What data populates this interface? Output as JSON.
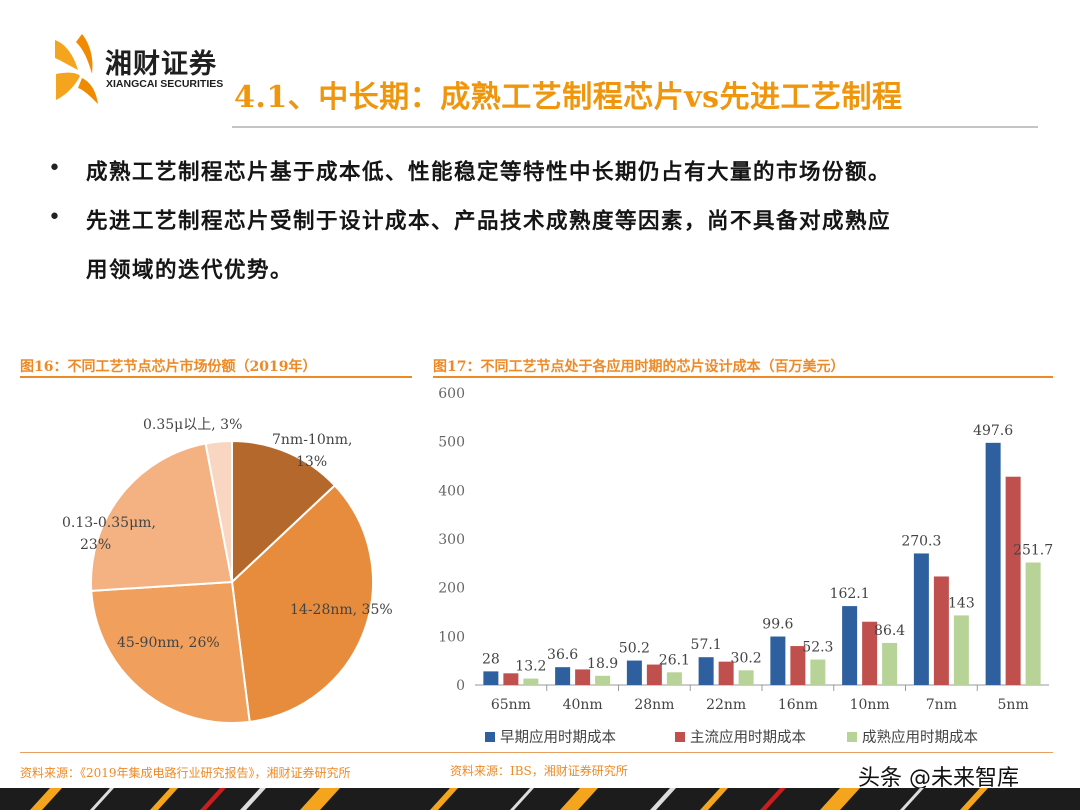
{
  "brand": {
    "name_cn": "湘财证券",
    "name_en": "XIANGCAI SECURITIES"
  },
  "title": "4.1、中长期：成熟工艺制程芯片vs先进工艺制程",
  "bullets": [
    {
      "lines": [
        "成熟工艺制程芯片基于成本低、性能稳定等特性中长期仍占有大量的市场份额。"
      ]
    },
    {
      "lines": [
        "先进工艺制程芯片受制于设计成本、产品技术成熟度等因素，尚不具备对成熟应",
        "用领域的迭代优势。"
      ]
    }
  ],
  "fig16": {
    "caption": "图16：不同工艺节点芯片市场份额（2019年）",
    "source": "资料来源：《2019年集成电路行业研究报告》，湘财证券研究所"
  },
  "fig17": {
    "caption": "图17：不同工艺节点处于各应用时期的芯片设计成本（百万美元）",
    "source": "资料来源：IBS，湘财证券研究所"
  },
  "chart_data": [
    {
      "type": "pie",
      "slices": [
        {
          "label": "7nm-10nm, 13%",
          "value": 13,
          "color": "#b5682b"
        },
        {
          "label": "14-28nm, 35%",
          "value": 35,
          "color": "#e78c3c"
        },
        {
          "label": "45-90nm, 26%",
          "value": 26,
          "color": "#f0a05c"
        },
        {
          "label": "0.13-0.35μm, 23%",
          "value": 23,
          "color": "#f4b283"
        },
        {
          "label": "0.35μ以上, 3%",
          "value": 3,
          "color": "#f9d6c2"
        }
      ]
    },
    {
      "type": "bar",
      "categories": [
        "65nm",
        "40nm",
        "28nm",
        "22nm",
        "16nm",
        "10nm",
        "7nm",
        "5nm"
      ],
      "series": [
        {
          "name": "早期应用时期成本",
          "color": "#2e5f9e",
          "values": [
            28,
            36.6,
            50.2,
            57.1,
            99.6,
            162.1,
            270.3,
            497.6
          ],
          "labels": [
            "28",
            "36.6",
            "50.2",
            "57.1",
            "99.6",
            "162.1",
            "270.3",
            "497.6"
          ]
        },
        {
          "name": "主流应用时期成本",
          "color": "#c0504d",
          "values": [
            24,
            32,
            42,
            48,
            80,
            130,
            223,
            428
          ],
          "labels": [
            "",
            "",
            "",
            "",
            "",
            "",
            "",
            ""
          ]
        },
        {
          "name": "成熟应用时期成本",
          "color": "#b8d398",
          "values": [
            13.2,
            18.9,
            26.1,
            30.2,
            52.3,
            86.4,
            143,
            251.7
          ],
          "labels": [
            "13.2",
            "18.9",
            "26.1",
            "30.2",
            "52.3",
            "86.4",
            "143",
            "251.7"
          ]
        }
      ],
      "ylim": [
        0,
        600
      ],
      "yticks": [
        "0",
        "100",
        "200",
        "300",
        "400",
        "500",
        "600"
      ],
      "grid": false,
      "legend": "bottom"
    }
  ],
  "watermark": "头条 @未来智库"
}
